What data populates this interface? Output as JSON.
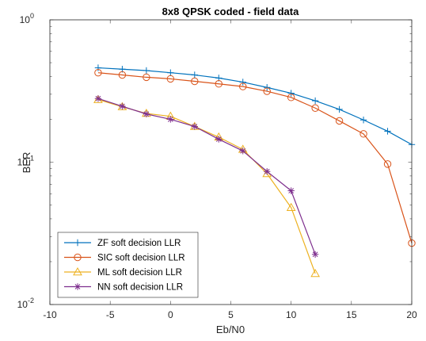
{
  "chart_data": {
    "type": "line",
    "title": "8x8 QPSK coded - field data",
    "xlabel": "Eb/N0",
    "ylabel": "BER",
    "xlim": [
      -10,
      20
    ],
    "ylim": [
      0.01,
      1
    ],
    "yscale": "log",
    "x_ticks": [
      "-10",
      "-5",
      "0",
      "5",
      "10",
      "15",
      "20"
    ],
    "y_ticks": [
      {
        "base": "10",
        "exp": "-2"
      },
      {
        "base": "10",
        "exp": "-1"
      },
      {
        "base": "10",
        "exp": "0"
      }
    ],
    "grid": false,
    "legend_position": "bottom-left",
    "series": [
      {
        "name": "ZF soft decision LLR",
        "color": "#0072BD",
        "marker": "plus",
        "x": [
          -6,
          -4,
          -2,
          0,
          2,
          4,
          6,
          8,
          10,
          12,
          14,
          16,
          18,
          20
        ],
        "y": [
          0.46,
          0.45,
          0.44,
          0.425,
          0.41,
          0.39,
          0.365,
          0.335,
          0.305,
          0.27,
          0.235,
          0.198,
          0.165,
          0.133
        ]
      },
      {
        "name": "SIC soft decision LLR",
        "color": "#D95319",
        "marker": "circle",
        "x": [
          -6,
          -4,
          -2,
          0,
          2,
          4,
          6,
          8,
          10,
          12,
          14,
          16,
          18,
          20
        ],
        "y": [
          0.425,
          0.41,
          0.395,
          0.385,
          0.37,
          0.355,
          0.34,
          0.315,
          0.285,
          0.24,
          0.195,
          0.158,
          0.097,
          0.027
        ]
      },
      {
        "name": "ML soft decision LLR",
        "color": "#EDB120",
        "marker": "triangle",
        "x": [
          -6,
          -4,
          -2,
          0,
          2,
          4,
          6,
          8,
          10,
          12
        ],
        "y": [
          0.275,
          0.245,
          0.22,
          0.21,
          0.178,
          0.15,
          0.123,
          0.083,
          0.048,
          0.0165
        ]
      },
      {
        "name": "NN soft decision LLR",
        "color": "#7E2F8E",
        "marker": "asterisk",
        "x": [
          -6,
          -4,
          -2,
          0,
          2,
          4,
          6,
          8,
          10,
          12
        ],
        "y": [
          0.28,
          0.247,
          0.218,
          0.2,
          0.178,
          0.145,
          0.12,
          0.086,
          0.063,
          0.0225
        ]
      }
    ]
  }
}
